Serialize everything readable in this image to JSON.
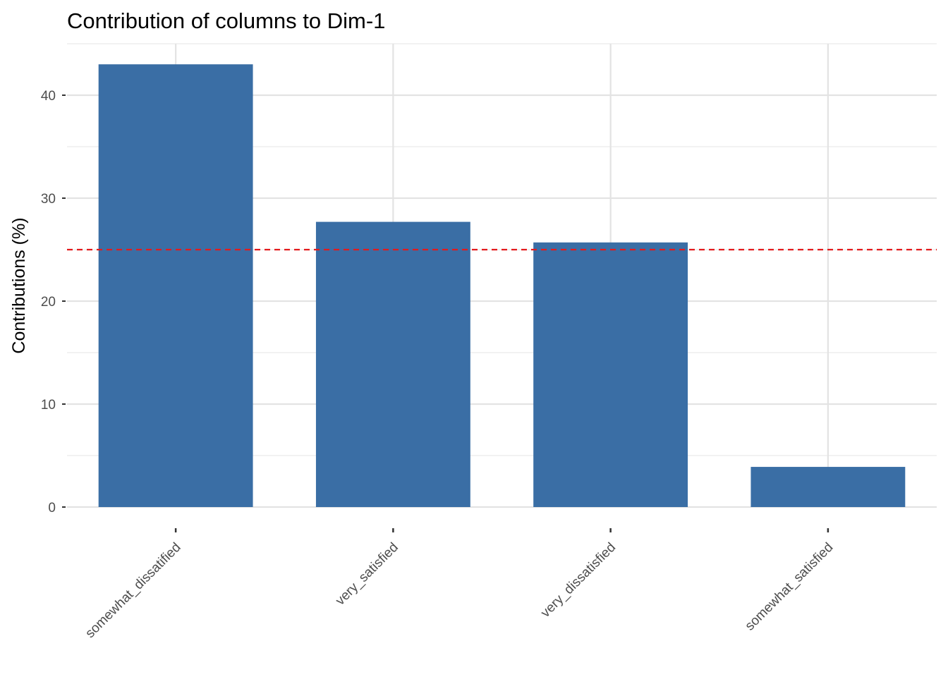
{
  "chart_data": {
    "type": "bar",
    "title": "Contribution of columns to Dim-1",
    "xlabel": "",
    "ylabel": "Contributions (%)",
    "categories": [
      "somewhat_dissatified",
      "very_satisfied",
      "very_dissatisfied",
      "somewhat_satisfied"
    ],
    "values": [
      43.0,
      27.7,
      25.7,
      3.9
    ],
    "ylim": [
      0,
      45
    ],
    "yticks": [
      0,
      10,
      20,
      30,
      40
    ],
    "reference_line": {
      "value": 25,
      "style": "dashed",
      "color": "#e31a1c"
    },
    "bar_color": "#3a6ea5",
    "grid": true,
    "legend": "none"
  }
}
